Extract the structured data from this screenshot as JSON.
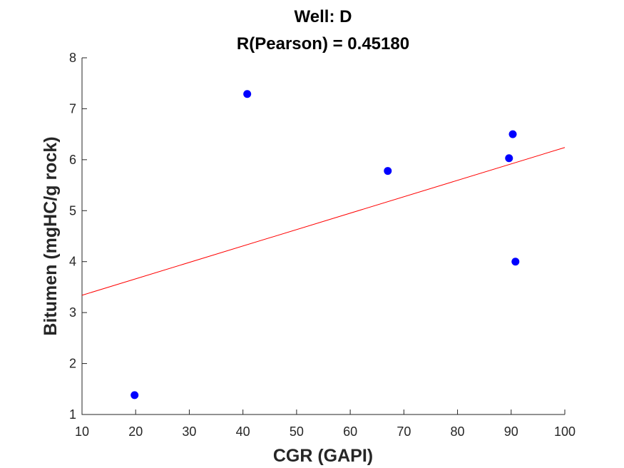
{
  "chart_data": {
    "type": "scatter",
    "title": "Well: D",
    "subtitle": "R(Pearson) = 0.45180",
    "xlabel": "CGR (GAPI)",
    "ylabel": "Bitumen (mgHC/g rock)",
    "xlim": [
      10,
      100
    ],
    "ylim": [
      1,
      8
    ],
    "xticks": [
      "10",
      "20",
      "30",
      "40",
      "50",
      "60",
      "70",
      "80",
      "90",
      "100"
    ],
    "yticks": [
      "1",
      "2",
      "3",
      "4",
      "5",
      "6",
      "7",
      "8"
    ],
    "grid": false,
    "series": [
      {
        "x": [
          19.8,
          40.8,
          67.0,
          89.6,
          90.3,
          90.8
        ],
        "y": [
          1.38,
          7.29,
          5.78,
          6.03,
          6.5,
          4.0
        ],
        "color": "#0000ff",
        "marker": "filled-circle"
      }
    ],
    "fit_line": {
      "x": [
        10,
        100
      ],
      "y": [
        3.34,
        6.24
      ],
      "color": "#ff0000"
    }
  }
}
